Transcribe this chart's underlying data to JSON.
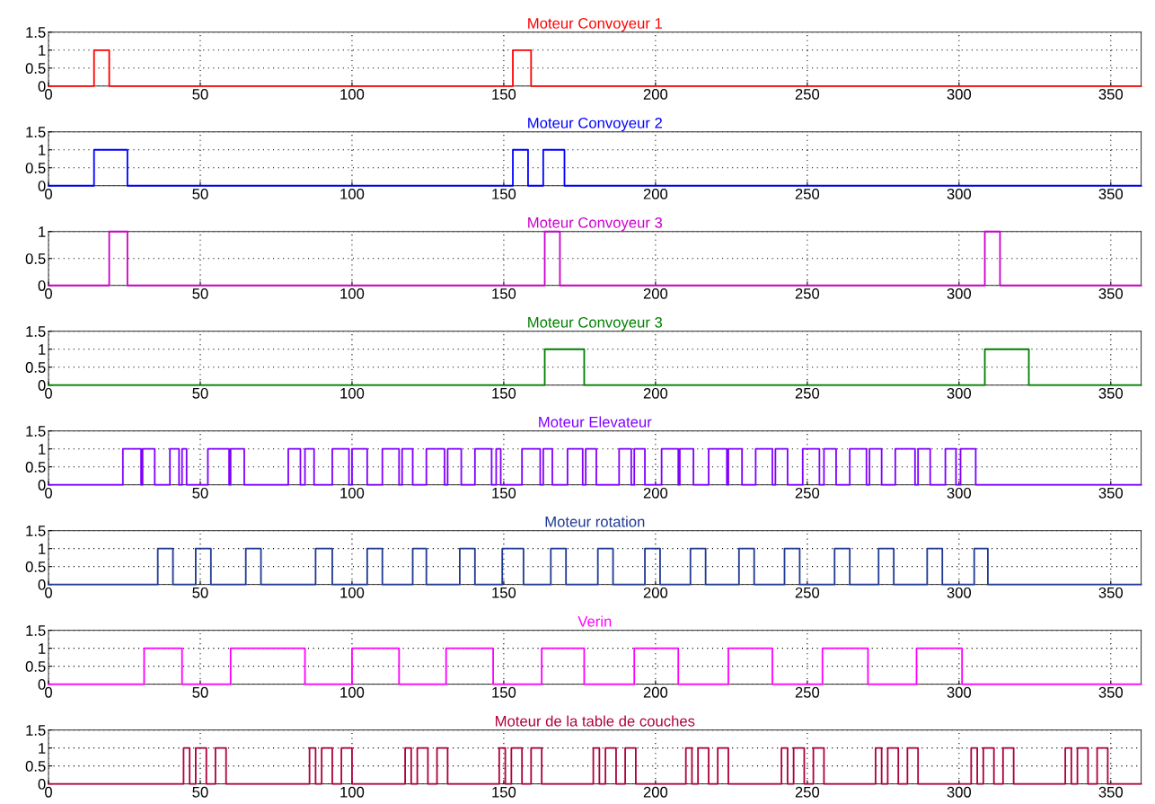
{
  "chart_data": [
    {
      "type": "step",
      "title": "Moteur Convoyeur 1",
      "color": "#ff0000",
      "x": [
        0,
        15,
        20,
        153,
        159,
        360
      ],
      "values": [
        0,
        1,
        0,
        1,
        0,
        0
      ],
      "xlim": [
        0,
        360
      ],
      "xticks": [
        0,
        50,
        100,
        150,
        200,
        250,
        300,
        350
      ],
      "ylim": [
        0,
        1.5
      ],
      "yticks": [
        0,
        0.5,
        1,
        1.5
      ],
      "grid": true
    },
    {
      "type": "step",
      "title": "Moteur Convoyeur 2",
      "color": "#0000ff",
      "x": [
        0,
        15,
        26,
        153,
        158,
        163,
        170,
        360
      ],
      "values": [
        0,
        1,
        0,
        1,
        0,
        1,
        0,
        0
      ],
      "xlim": [
        0,
        360
      ],
      "xticks": [
        0,
        50,
        100,
        150,
        200,
        250,
        300,
        350
      ],
      "ylim": [
        0,
        1.5
      ],
      "yticks": [
        0,
        0.5,
        1,
        1.5
      ],
      "grid": true
    },
    {
      "type": "step",
      "title": "Moteur Convoyeur 3",
      "color": "#cc00cc",
      "x": [
        0,
        20,
        26,
        163.5,
        168.5,
        308.5,
        313.5,
        360
      ],
      "values": [
        0,
        1,
        0,
        1,
        0,
        1,
        0,
        0
      ],
      "xlim": [
        0,
        360
      ],
      "xticks": [
        0,
        50,
        100,
        150,
        200,
        250,
        300,
        350
      ],
      "ylim": [
        0,
        1
      ],
      "yticks": [
        0,
        0.5,
        1
      ],
      "grid": true
    },
    {
      "type": "step",
      "title": "Moteur Convoyeur 3",
      "color": "#008000",
      "x": [
        0,
        163.5,
        176.5,
        308.5,
        323,
        360
      ],
      "values": [
        0,
        1,
        0,
        1,
        0,
        0
      ],
      "xlim": [
        0,
        360
      ],
      "xticks": [
        0,
        50,
        100,
        150,
        200,
        250,
        300,
        350
      ],
      "ylim": [
        0,
        1.5
      ],
      "yticks": [
        0,
        0.5,
        1,
        1.5
      ],
      "grid": true
    },
    {
      "type": "step",
      "title": "Moteur Elevateur",
      "color": "#8000ff",
      "x": [
        0,
        24.5,
        30.5,
        31,
        35,
        40,
        43,
        44,
        45.5,
        52.5,
        59.5,
        60,
        64.5,
        79,
        83,
        84.5,
        87.5,
        93.5,
        99,
        100,
        105,
        110,
        115.5,
        116.5,
        120,
        124.5,
        130.5,
        131.5,
        136,
        140.5,
        146,
        147.5,
        149,
        156,
        162,
        163,
        166,
        171,
        176,
        177,
        180.5,
        188,
        192,
        193,
        196.5,
        202,
        207.5,
        208,
        212.5,
        217.5,
        223.5,
        224,
        228.5,
        233,
        238.5,
        239.5,
        243.5,
        248.5,
        254,
        255.5,
        259.5,
        264,
        269.5,
        270.5,
        274.5,
        279,
        285.5,
        286.5,
        290.5,
        295.5,
        299,
        300.5,
        305.5,
        360
      ],
      "values": [
        0,
        1,
        0,
        1,
        0,
        1,
        0,
        1,
        0,
        1,
        0,
        1,
        0,
        1,
        0,
        1,
        0,
        1,
        0,
        1,
        0,
        1,
        0,
        1,
        0,
        1,
        0,
        1,
        0,
        1,
        0,
        1,
        0,
        1,
        0,
        1,
        0,
        1,
        0,
        1,
        0,
        1,
        0,
        1,
        0,
        1,
        0,
        1,
        0,
        1,
        0,
        1,
        0,
        1,
        0,
        1,
        0,
        1,
        0,
        1,
        0,
        1,
        0,
        1,
        0,
        1,
        0,
        1,
        0,
        1,
        0,
        1,
        0,
        0
      ],
      "xlim": [
        0,
        360
      ],
      "xticks": [
        0,
        50,
        100,
        150,
        200,
        250,
        300,
        350
      ],
      "ylim": [
        0,
        1.5
      ],
      "yticks": [
        0,
        0.5,
        1,
        1.5
      ],
      "grid": true
    },
    {
      "type": "step",
      "title": "Moteur rotation",
      "color": "#1f3a93",
      "x": [
        0,
        36,
        41,
        48.5,
        53.5,
        65,
        70,
        88,
        93.5,
        105,
        110,
        120,
        124.5,
        135.5,
        140.5,
        149.5,
        156.5,
        165.5,
        170.5,
        181,
        186,
        196.5,
        201.5,
        211.5,
        216.5,
        227.5,
        232.5,
        242.5,
        247.5,
        259,
        264,
        273.5,
        278.5,
        289.5,
        294.5,
        305,
        309.5,
        360
      ],
      "values": [
        0,
        1,
        0,
        1,
        0,
        1,
        0,
        1,
        0,
        1,
        0,
        1,
        0,
        1,
        0,
        1,
        0,
        1,
        0,
        1,
        0,
        1,
        0,
        1,
        0,
        1,
        0,
        1,
        0,
        1,
        0,
        1,
        0,
        1,
        0,
        1,
        0,
        0
      ],
      "xlim": [
        0,
        360
      ],
      "xticks": [
        0,
        50,
        100,
        150,
        200,
        250,
        300,
        350
      ],
      "ylim": [
        0,
        1.5
      ],
      "yticks": [
        0,
        0.5,
        1,
        1.5
      ],
      "grid": true
    },
    {
      "type": "step",
      "title": "Verin",
      "color": "#ff00ff",
      "x": [
        0,
        31.5,
        44,
        60,
        84.5,
        100,
        115.5,
        131,
        146.5,
        162.5,
        176.5,
        193,
        207.5,
        224,
        238.5,
        255,
        270,
        286,
        301,
        360
      ],
      "values": [
        0,
        1,
        0,
        1,
        0,
        1,
        0,
        1,
        0,
        1,
        0,
        1,
        0,
        1,
        0,
        1,
        0,
        1,
        0,
        0
      ],
      "xlim": [
        0,
        360
      ],
      "xticks": [
        0,
        50,
        100,
        150,
        200,
        250,
        300,
        350
      ],
      "ylim": [
        0,
        1.5
      ],
      "yticks": [
        0,
        0.5,
        1,
        1.5
      ],
      "grid": true
    },
    {
      "type": "step",
      "title": "Moteur de la table de couches",
      "color": "#b0003a",
      "x": [
        0,
        44.5,
        46.5,
        48.5,
        52,
        55,
        58.5,
        86,
        88,
        90,
        93.5,
        96.5,
        100,
        117.5,
        119.5,
        121.5,
        125,
        128,
        131.5,
        148.5,
        150.5,
        152.5,
        156,
        159,
        162.5,
        179.5,
        181.5,
        183.5,
        187,
        190,
        193.5,
        210,
        212,
        214,
        217.5,
        220.5,
        224,
        241.5,
        243.5,
        245.5,
        249,
        252,
        255.5,
        272.5,
        274.5,
        276.5,
        280,
        283,
        286.5,
        304,
        306,
        308,
        311.5,
        314.5,
        318,
        335,
        337,
        339,
        342.5,
        345.5,
        349,
        360
      ],
      "values": [
        0,
        1,
        0,
        1,
        0,
        1,
        0,
        1,
        0,
        1,
        0,
        1,
        0,
        1,
        0,
        1,
        0,
        1,
        0,
        1,
        0,
        1,
        0,
        1,
        0,
        1,
        0,
        1,
        0,
        1,
        0,
        1,
        0,
        1,
        0,
        1,
        0,
        1,
        0,
        1,
        0,
        1,
        0,
        1,
        0,
        1,
        0,
        1,
        0,
        1,
        0,
        1,
        0,
        1,
        0,
        1,
        0,
        1,
        0,
        1,
        0,
        0
      ],
      "xlim": [
        0,
        360
      ],
      "xticks": [
        0,
        50,
        100,
        150,
        200,
        250,
        300,
        350
      ],
      "ylim": [
        0,
        1.5
      ],
      "yticks": [
        0,
        0.5,
        1,
        1.5
      ],
      "grid": true
    }
  ]
}
